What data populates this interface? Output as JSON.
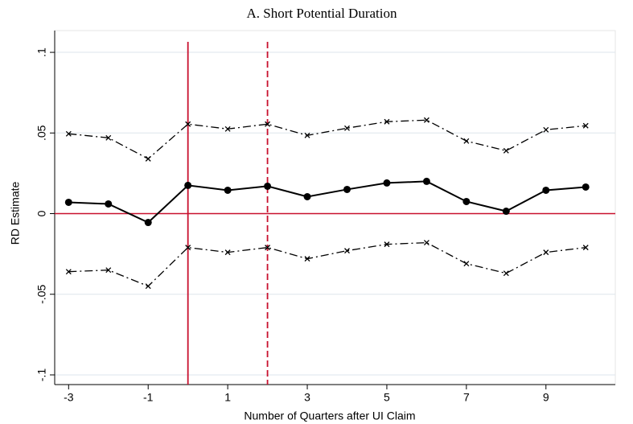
{
  "chart_data": {
    "type": "line",
    "title": "A. Short Potential Duration",
    "x_label": "Number of Quarters after UI Claim",
    "y_label": "RD Estimate",
    "x": [
      -3,
      -2,
      -1,
      0,
      1,
      2,
      3,
      4,
      5,
      6,
      7,
      8,
      9,
      10
    ],
    "series": [
      {
        "color": "#000000",
        "marker": "circle",
        "dash": "solid",
        "values": [
          0.007,
          0.006,
          -0.0055,
          0.0175,
          0.0145,
          0.017,
          0.0105,
          0.015,
          0.019,
          0.02,
          0.0075,
          0.0015,
          0.0145,
          0.0165
        ]
      },
      {
        "color": "#000000",
        "marker": "x",
        "dash": "dashdot",
        "values": [
          0.0495,
          0.047,
          0.034,
          0.0555,
          0.0525,
          0.0555,
          0.0485,
          0.053,
          0.057,
          0.058,
          0.045,
          0.039,
          0.052,
          0.0545
        ]
      },
      {
        "color": "#000000",
        "marker": "x",
        "dash": "dashdot",
        "values": [
          -0.036,
          -0.035,
          -0.045,
          -0.021,
          -0.024,
          -0.021,
          -0.028,
          -0.023,
          -0.019,
          -0.018,
          -0.031,
          -0.037,
          -0.024,
          -0.021
        ]
      }
    ],
    "xlim": [
      -3.35,
      10.4
    ],
    "ylim": [
      -0.106,
      0.1135
    ],
    "xticks": [
      -3,
      -1,
      1,
      3,
      5,
      7,
      9
    ],
    "yticks": [
      {
        "value": -0.1,
        "label": "-.1"
      },
      {
        "value": -0.05,
        "label": "-.05"
      },
      {
        "value": 0,
        "label": "0"
      },
      {
        "value": 0.05,
        "label": ".05"
      },
      {
        "value": 0.1,
        "label": ".1"
      }
    ],
    "grid": true,
    "reference_lines": {
      "color": "#c8102e",
      "horizontal": [
        0
      ],
      "vertical": [
        {
          "x": 0,
          "dash": "solid"
        },
        {
          "x": 2,
          "dash": "dashed"
        }
      ]
    }
  }
}
